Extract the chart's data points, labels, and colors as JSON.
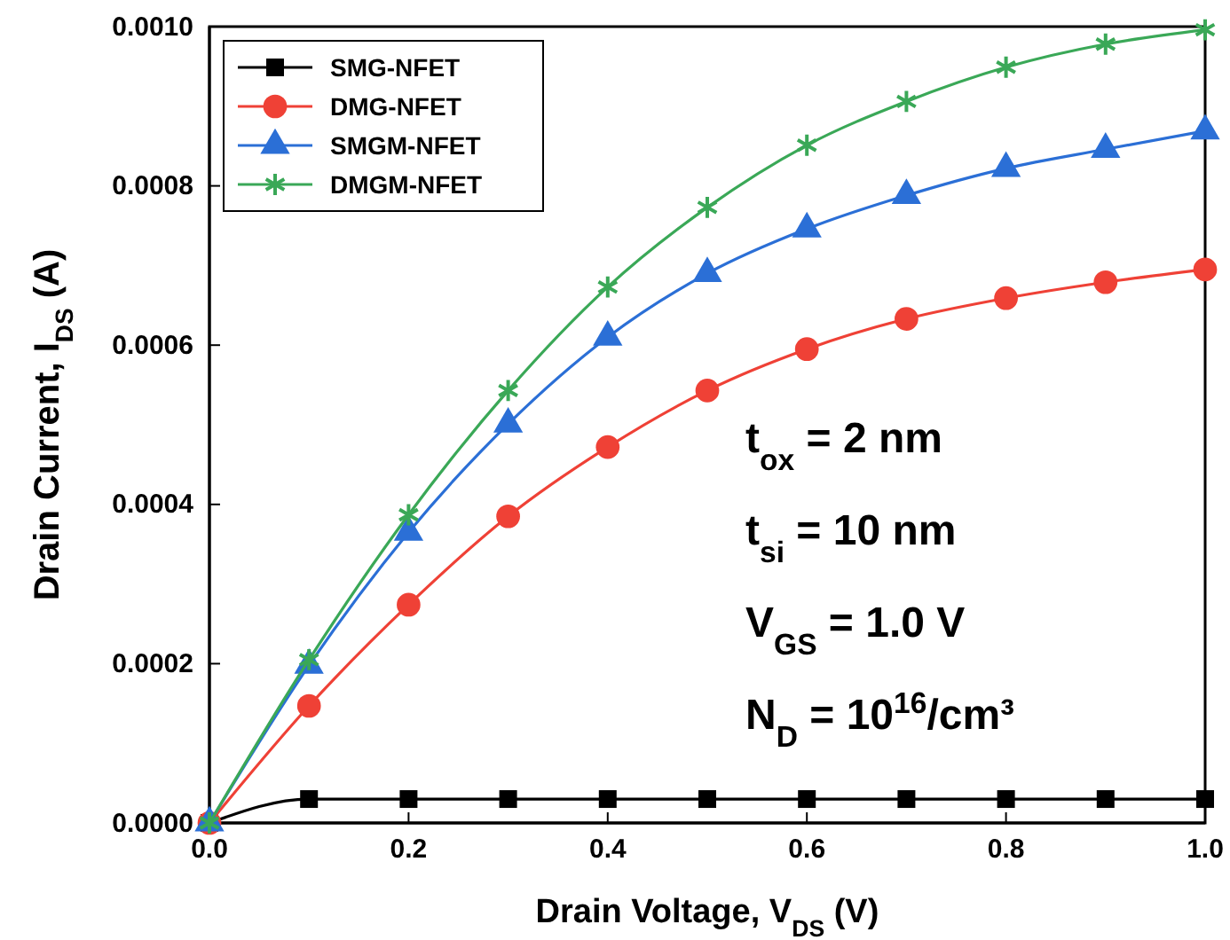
{
  "chart_data": {
    "type": "line",
    "xlabel": "Drain Voltage, V$_{DS}$ (V)",
    "ylabel": "Drain Current, I$_{DS}$ (A)",
    "x": [
      0,
      0.1,
      0.2,
      0.3,
      0.4,
      0.5,
      0.6,
      0.7,
      0.8,
      0.9,
      1.0
    ],
    "xlim": [
      0,
      1.0
    ],
    "xticks": [
      {
        "value": 0,
        "label": "0.0"
      },
      {
        "value": 0.2,
        "label": "0.2"
      },
      {
        "value": 0.4,
        "label": "0.4"
      },
      {
        "value": 0.6,
        "label": "0.6"
      },
      {
        "value": 0.8,
        "label": "0.8"
      },
      {
        "value": 1.0,
        "label": "1.0"
      }
    ],
    "ylim": [
      0,
      0.001
    ],
    "yticks": [
      {
        "value": 0,
        "label": "0.0000"
      },
      {
        "value": 0.0002,
        "label": "0.0002"
      },
      {
        "value": 0.0004,
        "label": "0.0004"
      },
      {
        "value": 0.0006,
        "label": "0.0006"
      },
      {
        "value": 0.0008,
        "label": "0.0008"
      },
      {
        "value": 0.001,
        "label": "0.0010"
      }
    ],
    "legend": "top left",
    "grid": false,
    "series": [
      {
        "name": "SMG-NFET",
        "color": "#000000",
        "marker": "square",
        "values": [
          0,
          3e-05,
          3e-05,
          3e-05,
          3e-05,
          3e-05,
          3e-05,
          3e-05,
          3e-05,
          3e-05,
          3e-05
        ]
      },
      {
        "name": "DMG-NFET",
        "color": "#ef4136",
        "marker": "circle",
        "values": [
          0,
          0.000147,
          0.000274,
          0.000385,
          0.000472,
          0.000543,
          0.000595,
          0.000633,
          0.000659,
          0.000679,
          0.000695
        ]
      },
      {
        "name": "SMGM-NFET",
        "color": "#2b6fd6",
        "marker": "triangle",
        "values": [
          0,
          0.000198,
          0.000365,
          0.000501,
          0.00061,
          0.00069,
          0.000746,
          0.000788,
          0.000822,
          0.000846,
          0.000869
        ]
      },
      {
        "name": "DMGM-NFET",
        "color": "#3aa857",
        "marker": "cross",
        "values": [
          0,
          0.000205,
          0.000387,
          0.000543,
          0.000673,
          0.000773,
          0.000851,
          0.000906,
          0.000949,
          0.000978,
          0.000996
        ]
      }
    ],
    "annotations": [
      "t$_{ox}$ = 2 nm",
      "t$_{si}$ = 10 nm",
      "V$_{GS}$ = 1.0 V",
      "N$_{D}$ = 10$^{16}$/cm³"
    ]
  }
}
